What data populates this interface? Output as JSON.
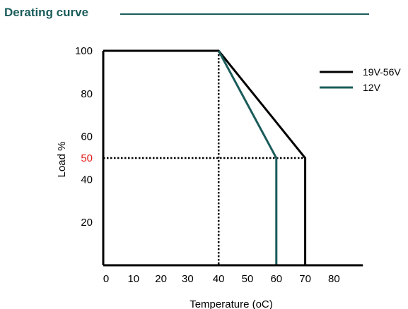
{
  "header": {
    "title": "Derating curve"
  },
  "chart_data": {
    "type": "line",
    "xlabel": "Temperature (oC)",
    "ylabel": "Load %",
    "xlim": [
      0,
      90
    ],
    "ylim": [
      0,
      100
    ],
    "x_ticks": [
      "0",
      "10",
      "20",
      "30",
      "40",
      "50",
      "60",
      "70",
      "80"
    ],
    "y_ticks": [
      "20",
      "40",
      "50",
      "60",
      "80",
      "100"
    ],
    "highlight_tick": "50",
    "legend_position": "top-right",
    "series": [
      {
        "name": "19V-56V",
        "color": "#000000",
        "points": [
          [
            0,
            100
          ],
          [
            40,
            100
          ],
          [
            70,
            50
          ],
          [
            70,
            0
          ]
        ]
      },
      {
        "name": "12V",
        "color": "#1a5c5a",
        "points": [
          [
            40,
            100
          ],
          [
            60,
            50
          ],
          [
            60,
            0
          ]
        ]
      }
    ],
    "reference_lines": [
      {
        "points": [
          [
            40,
            100
          ],
          [
            40,
            0
          ]
        ]
      },
      {
        "points": [
          [
            0,
            50
          ],
          [
            70,
            50
          ]
        ]
      }
    ],
    "colors": {
      "tick_highlight": "#e31b1b",
      "axis": "#000000"
    }
  }
}
